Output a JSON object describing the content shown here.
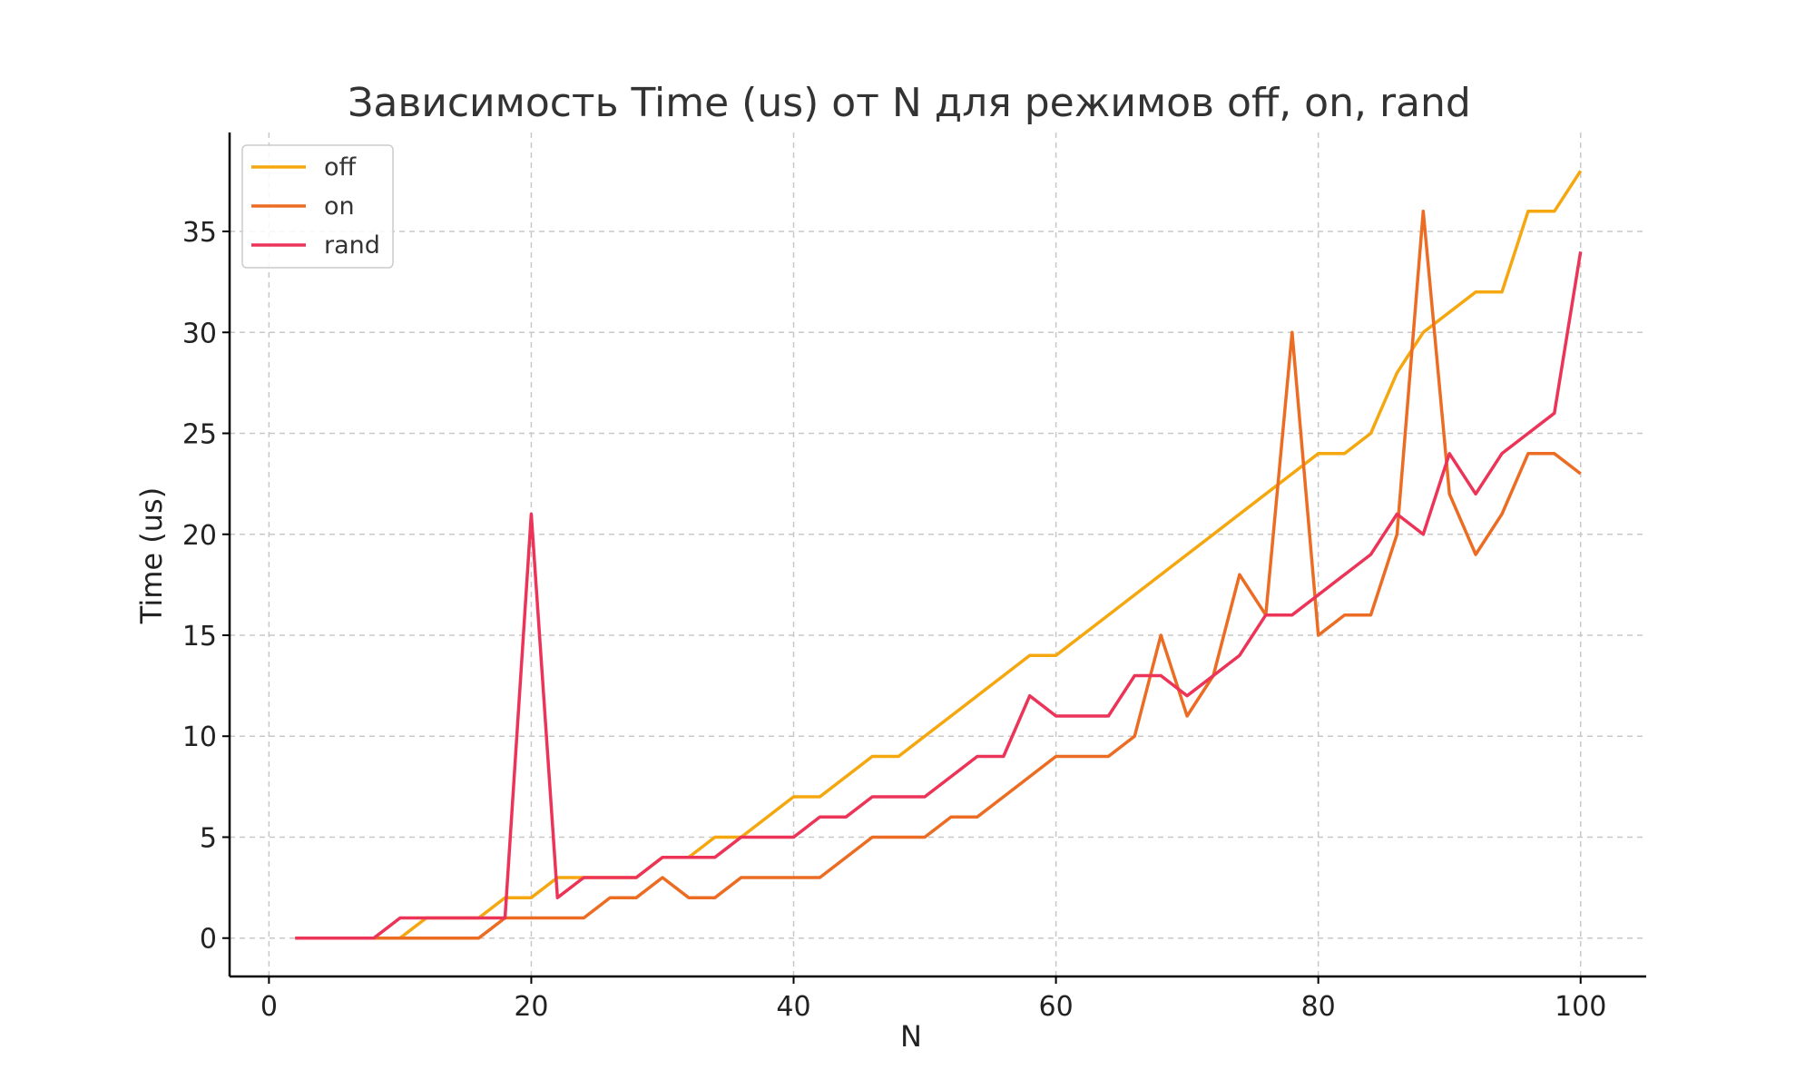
{
  "chart_data": {
    "type": "line",
    "title": "Зависимость Time (us) от N для режимов off, on, rand",
    "xlabel": "N",
    "ylabel": "Time (us)",
    "xlim": [
      -3,
      105
    ],
    "ylim": [
      -1.9,
      39.9
    ],
    "xticks": [
      0,
      20,
      40,
      60,
      80,
      100
    ],
    "yticks": [
      0,
      5,
      10,
      15,
      20,
      25,
      30,
      35
    ],
    "grid": true,
    "legend_position": "top-left",
    "x": [
      2,
      4,
      6,
      8,
      10,
      12,
      14,
      16,
      18,
      20,
      22,
      24,
      26,
      28,
      30,
      32,
      34,
      36,
      38,
      40,
      42,
      44,
      46,
      48,
      50,
      52,
      54,
      56,
      58,
      60,
      62,
      64,
      66,
      68,
      70,
      72,
      74,
      76,
      78,
      80,
      82,
      84,
      86,
      88,
      90,
      92,
      94,
      96,
      98,
      100
    ],
    "series": [
      {
        "name": "off",
        "color": "#f5a70f",
        "values": [
          0,
          0,
          0,
          0,
          0,
          1,
          1,
          1,
          2,
          2,
          3,
          3,
          3,
          3,
          4,
          4,
          5,
          5,
          6,
          7,
          7,
          8,
          9,
          9,
          10,
          11,
          12,
          13,
          14,
          14,
          15,
          16,
          17,
          18,
          19,
          20,
          21,
          22,
          23,
          24,
          24,
          25,
          28,
          30,
          31,
          32,
          32,
          36,
          36,
          38
        ]
      },
      {
        "name": "on",
        "color": "#ec6c23",
        "values": [
          0,
          0,
          0,
          0,
          0,
          0,
          0,
          0,
          1,
          1,
          1,
          1,
          2,
          2,
          3,
          2,
          2,
          3,
          3,
          3,
          3,
          4,
          5,
          5,
          5,
          6,
          6,
          7,
          8,
          9,
          9,
          9,
          10,
          15,
          11,
          13,
          18,
          16,
          30,
          15,
          16,
          16,
          20,
          36,
          22,
          19,
          21,
          24,
          24,
          23
        ]
      },
      {
        "name": "rand",
        "color": "#ec3458",
        "values": [
          0,
          0,
          0,
          0,
          1,
          1,
          1,
          1,
          1,
          21,
          2,
          3,
          3,
          3,
          4,
          4,
          4,
          5,
          5,
          5,
          6,
          6,
          7,
          7,
          7,
          8,
          9,
          9,
          12,
          11,
          11,
          11,
          13,
          13,
          12,
          13,
          14,
          16,
          16,
          17,
          18,
          19,
          21,
          20,
          24,
          22,
          24,
          25,
          26,
          34
        ]
      }
    ]
  }
}
